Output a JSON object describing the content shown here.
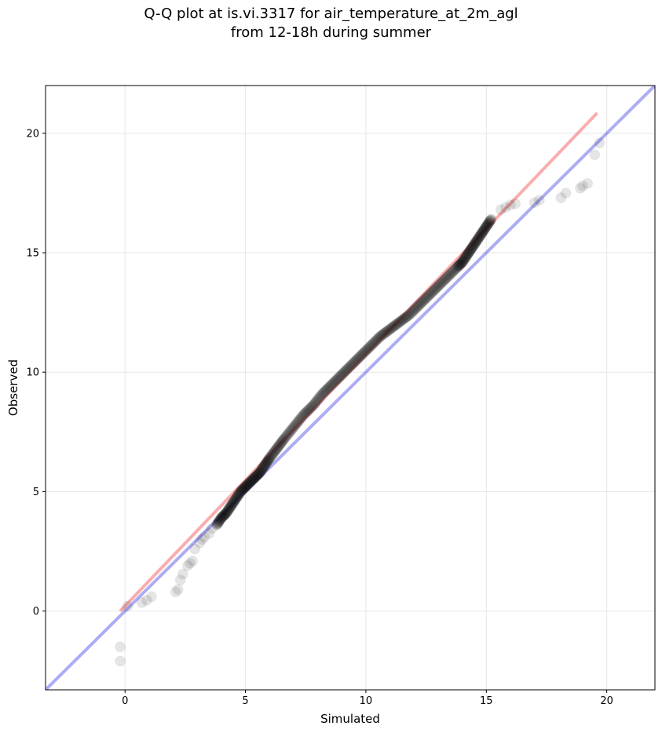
{
  "chart_data": {
    "type": "scatter",
    "title": [
      "Q-Q plot at is.vi.3317 for air_temperature_at_2m_agl",
      "from 12-18h during summer"
    ],
    "xlabel": "Simulated",
    "ylabel": "Observed",
    "xlim": [
      -3.3,
      22.0
    ],
    "ylim": [
      -3.3,
      22.0
    ],
    "xticks": [
      0,
      5,
      10,
      15,
      20
    ],
    "yticks": [
      0,
      5,
      10,
      15,
      20
    ],
    "grid": true,
    "colors": {
      "points": "#000000",
      "identity_line": "#0000dd",
      "fit_line": "#ee0000",
      "grid": "#e6e6e6"
    },
    "identity_line": {
      "x": [
        -3.3,
        22.0
      ],
      "y": [
        -3.3,
        22.0
      ]
    },
    "fit_line": {
      "x": [
        -0.2,
        19.6
      ],
      "y": [
        0.0,
        20.85
      ]
    },
    "outlier_points": {
      "x": [
        -0.2,
        -0.2,
        0.1,
        0.7,
        0.9,
        1.1,
        2.1,
        2.2,
        2.3,
        2.4,
        2.6,
        2.7,
        2.8,
        2.9,
        3.1,
        3.2,
        3.3,
        3.5,
        3.6,
        15.6,
        15.8,
        16.0,
        16.2,
        17.0,
        17.2,
        18.1,
        18.3,
        18.9,
        19.0,
        19.2,
        19.5,
        19.7
      ],
      "y": [
        -2.1,
        -1.5,
        0.2,
        0.35,
        0.45,
        0.6,
        0.8,
        0.9,
        1.3,
        1.55,
        1.9,
        2.0,
        2.1,
        2.6,
        2.85,
        3.0,
        3.1,
        3.25,
        3.45,
        16.8,
        16.9,
        17.0,
        17.05,
        17.1,
        17.2,
        17.3,
        17.5,
        17.7,
        17.8,
        17.9,
        19.1,
        19.6
      ]
    },
    "dense_points": {
      "x": [
        3.8,
        4.0,
        4.2,
        4.4,
        4.6,
        4.8,
        5.0,
        5.2,
        5.4,
        5.6,
        5.8,
        6.0,
        6.3,
        6.6,
        7.0,
        7.4,
        7.8,
        8.2,
        8.6,
        9.0,
        9.4,
        9.8,
        10.2,
        10.6,
        11.0,
        11.4,
        11.8,
        12.2,
        12.6,
        13.0,
        13.4,
        13.8,
        14.0,
        14.2,
        14.4,
        14.6,
        14.8,
        15.0,
        15.2
      ],
      "y": [
        3.6,
        3.9,
        4.1,
        4.4,
        4.7,
        5.0,
        5.2,
        5.4,
        5.6,
        5.8,
        6.1,
        6.4,
        6.8,
        7.2,
        7.7,
        8.2,
        8.6,
        9.1,
        9.5,
        9.9,
        10.3,
        10.7,
        11.1,
        11.5,
        11.8,
        12.1,
        12.4,
        12.8,
        13.2,
        13.6,
        14.0,
        14.4,
        14.6,
        14.9,
        15.2,
        15.5,
        15.8,
        16.1,
        16.4
      ]
    }
  }
}
